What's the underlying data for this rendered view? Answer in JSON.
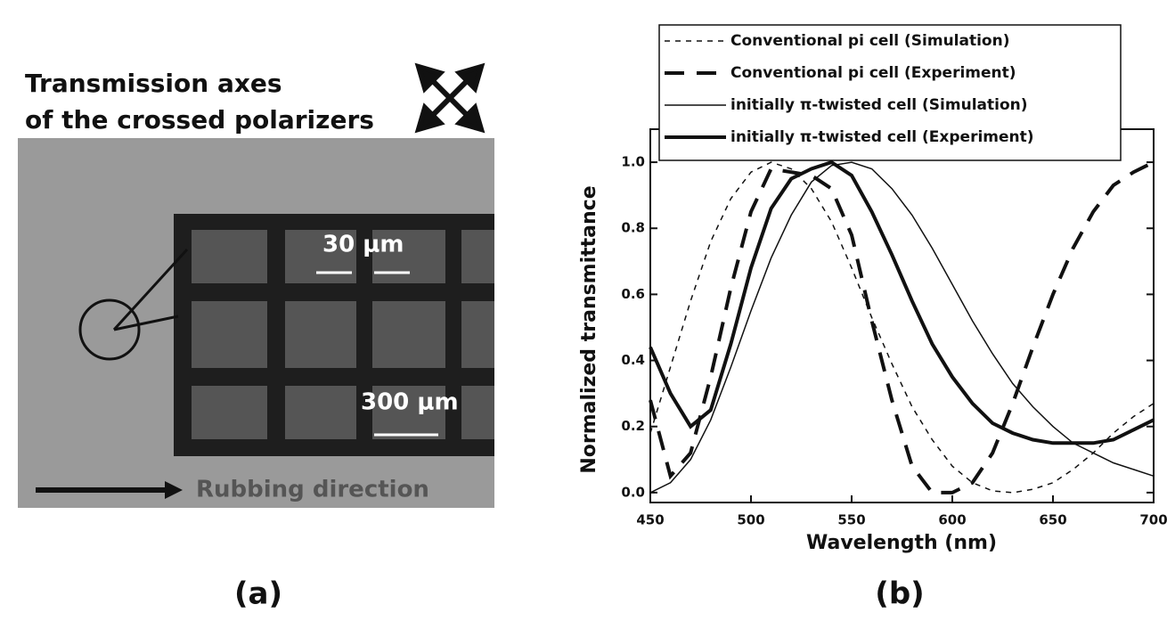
{
  "panel_a": {
    "caption": [
      "Transmission axes",
      "of the crossed polarizers"
    ],
    "scale_small": "30 μm",
    "scale_large": "300 μm",
    "rubbing": "Rubbing direction",
    "label": "(a)"
  },
  "chart_data": {
    "type": "line",
    "panel_label": "(b)",
    "x_label": "Wavelength (nm)",
    "y_label": "Normalized transmittance",
    "x": [
      450,
      460,
      470,
      480,
      490,
      500,
      510,
      520,
      530,
      540,
      550,
      560,
      570,
      580,
      590,
      600,
      610,
      620,
      630,
      640,
      650,
      660,
      670,
      680,
      690,
      700
    ],
    "xlim": [
      450,
      700
    ],
    "xticks": [
      450,
      500,
      550,
      600,
      650,
      700
    ],
    "ylim": [
      -0.03,
      1.1
    ],
    "yticks": [
      {
        "value": 0,
        "label": "0.0"
      },
      0.2,
      0.4,
      0.6,
      0.8,
      {
        "value": 1,
        "label": "1.0"
      }
    ],
    "series": [
      {
        "name": "Conventional pi cell (Simulation)",
        "color": "#111111",
        "style": "dashed",
        "width": 1.5,
        "values": [
          0.18,
          0.38,
          0.58,
          0.76,
          0.89,
          0.97,
          1.0,
          0.98,
          0.92,
          0.82,
          0.68,
          0.53,
          0.39,
          0.26,
          0.16,
          0.08,
          0.03,
          0.005,
          0.0,
          0.01,
          0.03,
          0.07,
          0.12,
          0.18,
          0.23,
          0.27
        ]
      },
      {
        "name": "Conventional pi cell (Experiment)",
        "color": "#111111",
        "style": "longdash",
        "width": 4,
        "values": [
          0.28,
          0.05,
          0.12,
          0.35,
          0.62,
          0.85,
          0.98,
          0.97,
          0.96,
          0.92,
          0.78,
          0.52,
          0.28,
          0.08,
          0.0,
          0.0,
          0.03,
          0.12,
          0.27,
          0.44,
          0.6,
          0.74,
          0.85,
          0.93,
          0.97,
          1.0
        ]
      },
      {
        "name": "initially π-twisted cell (Simulation)",
        "color": "#111111",
        "style": "solid",
        "width": 1.5,
        "values": [
          0.0,
          0.03,
          0.1,
          0.22,
          0.38,
          0.55,
          0.71,
          0.84,
          0.94,
          0.99,
          1.0,
          0.98,
          0.92,
          0.84,
          0.74,
          0.63,
          0.52,
          0.42,
          0.33,
          0.26,
          0.2,
          0.15,
          0.12,
          0.09,
          0.07,
          0.05
        ]
      },
      {
        "name": "initially π-twisted cell (Experiment)",
        "color": "#111111",
        "style": "solid",
        "width": 4,
        "values": [
          0.44,
          0.3,
          0.2,
          0.25,
          0.45,
          0.68,
          0.86,
          0.95,
          0.98,
          1.0,
          0.96,
          0.85,
          0.72,
          0.58,
          0.45,
          0.35,
          0.27,
          0.21,
          0.18,
          0.16,
          0.15,
          0.15,
          0.15,
          0.16,
          0.19,
          0.22
        ]
      }
    ]
  }
}
